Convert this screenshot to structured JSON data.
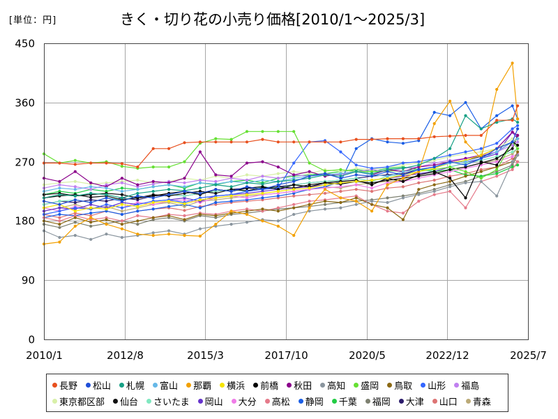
{
  "chart_data": {
    "type": "line",
    "title": "きく・切り花の小売り価格[2010/1～2025/3]",
    "unit_label": "[単位：円]",
    "ylim": [
      0,
      450
    ],
    "xlim": [
      "2010/1",
      "2025/7"
    ],
    "y_ticks": [
      0,
      90,
      180,
      270,
      360,
      450
    ],
    "x_ticks": [
      "2010/1",
      "2012/8",
      "2015/3",
      "2017/10",
      "2020/5",
      "2022/12",
      "2025/7"
    ],
    "grid": true,
    "markers": true,
    "legend_position": "bottom",
    "x": [
      "2010/1",
      "2010/7",
      "2011/1",
      "2011/7",
      "2012/1",
      "2012/7",
      "2013/1",
      "2013/7",
      "2014/1",
      "2014/7",
      "2015/1",
      "2015/7",
      "2016/1",
      "2016/7",
      "2017/1",
      "2017/7",
      "2018/1",
      "2018/7",
      "2019/1",
      "2019/7",
      "2020/1",
      "2020/7",
      "2021/1",
      "2021/7",
      "2022/1",
      "2022/7",
      "2023/1",
      "2023/7",
      "2024/1",
      "2024/7",
      "2025/1",
      "2025/3"
    ],
    "series": [
      {
        "name": "長野",
        "color": "#E8501E",
        "values": [
          268,
          268,
          266,
          268,
          268,
          267,
          262,
          290,
          290,
          299,
          300,
          300,
          300,
          300,
          304,
          300,
          300,
          300,
          300,
          300,
          304,
          304,
          305,
          305,
          305,
          308,
          309,
          310,
          310,
          333,
          333,
          355
        ]
      },
      {
        "name": "松山",
        "color": "#1F4FD8",
        "values": [
          210,
          205,
          212,
          208,
          215,
          210,
          218,
          215,
          220,
          225,
          222,
          228,
          225,
          232,
          228,
          235,
          240,
          248,
          252,
          245,
          250,
          248,
          255,
          250,
          258,
          262,
          270,
          265,
          275,
          290,
          300,
          320
        ]
      },
      {
        "name": "札幌",
        "color": "#16A085",
        "values": [
          215,
          220,
          218,
          222,
          220,
          215,
          222,
          225,
          228,
          226,
          230,
          235,
          232,
          238,
          236,
          240,
          242,
          245,
          250,
          248,
          255,
          252,
          258,
          260,
          265,
          275,
          290,
          340,
          320,
          330,
          335,
          330
        ]
      },
      {
        "name": "富山",
        "color": "#66B8E8",
        "values": [
          225,
          230,
          228,
          232,
          230,
          225,
          228,
          232,
          235,
          232,
          238,
          236,
          240,
          238,
          242,
          240,
          245,
          248,
          250,
          252,
          255,
          250,
          248,
          255,
          258,
          262,
          268,
          270,
          275,
          285,
          300,
          305
        ]
      },
      {
        "name": "那覇",
        "color": "#F2A000",
        "values": [
          145,
          148,
          172,
          185,
          175,
          168,
          160,
          158,
          160,
          158,
          157,
          175,
          195,
          190,
          180,
          172,
          158,
          200,
          228,
          215,
          210,
          195,
          235,
          245,
          255,
          328,
          362,
          300,
          275,
          380,
          420,
          335
        ]
      },
      {
        "name": "横浜",
        "color": "#F5E400",
        "values": [
          200,
          205,
          195,
          200,
          198,
          205,
          202,
          208,
          210,
          206,
          212,
          215,
          218,
          220,
          222,
          225,
          228,
          230,
          235,
          238,
          240,
          242,
          245,
          250,
          255,
          260,
          268,
          272,
          280,
          290,
          300,
          305
        ]
      },
      {
        "name": "前橋",
        "color": "#000000",
        "values": [
          220,
          222,
          218,
          220,
          222,
          220,
          215,
          218,
          222,
          225,
          220,
          228,
          225,
          230,
          232,
          228,
          235,
          232,
          238,
          240,
          242,
          235,
          245,
          240,
          250,
          255,
          245,
          215,
          270,
          265,
          300,
          295
        ]
      },
      {
        "name": "秋田",
        "color": "#8B008B",
        "values": [
          245,
          240,
          255,
          238,
          232,
          245,
          235,
          240,
          238,
          245,
          285,
          250,
          248,
          268,
          270,
          262,
          250,
          255,
          248,
          252,
          255,
          250,
          258,
          255,
          262,
          265,
          270,
          275,
          280,
          290,
          315,
          310
        ]
      },
      {
        "name": "高知",
        "color": "#8A959E",
        "values": [
          165,
          155,
          158,
          152,
          160,
          155,
          158,
          162,
          165,
          160,
          168,
          172,
          175,
          178,
          182,
          180,
          190,
          195,
          198,
          200,
          205,
          210,
          208,
          215,
          220,
          225,
          232,
          238,
          240,
          218,
          270,
          280
        ]
      },
      {
        "name": "盛岡",
        "color": "#66E033",
        "values": [
          282,
          268,
          272,
          268,
          270,
          263,
          260,
          262,
          262,
          270,
          298,
          305,
          304,
          316,
          316,
          316,
          316,
          268,
          256,
          258,
          255,
          255,
          256,
          256,
          258,
          258,
          262,
          255,
          245,
          258,
          300,
          290
        ]
      },
      {
        "name": "鳥取",
        "color": "#8B6914",
        "values": [
          180,
          175,
          185,
          178,
          182,
          175,
          180,
          185,
          188,
          182,
          190,
          188,
          192,
          195,
          198,
          195,
          200,
          205,
          210,
          208,
          215,
          205,
          200,
          182,
          228,
          235,
          240,
          248,
          255,
          262,
          270,
          285
        ]
      },
      {
        "name": "山形",
        "color": "#3366FF",
        "values": [
          190,
          195,
          200,
          198,
          205,
          200,
          205,
          210,
          212,
          208,
          215,
          218,
          220,
          225,
          228,
          230,
          268,
          300,
          302,
          285,
          265,
          260,
          262,
          268,
          270,
          275,
          280,
          285,
          290,
          298,
          320,
          325
        ]
      },
      {
        "name": "福島",
        "color": "#C080F0",
        "values": [
          230,
          235,
          232,
          228,
          235,
          238,
          232,
          236,
          240,
          238,
          242,
          240,
          245,
          242,
          248,
          245,
          250,
          248,
          252,
          250,
          255,
          258,
          255,
          260,
          262,
          268,
          272,
          275,
          280,
          285,
          295,
          300
        ]
      },
      {
        "name": "東京都区部",
        "color": "#D8F0A8",
        "values": [
          235,
          238,
          240,
          236,
          238,
          240,
          242,
          238,
          240,
          245,
          242,
          248,
          245,
          250,
          248,
          252,
          255,
          252,
          258,
          255,
          260,
          258,
          262,
          265,
          268,
          272,
          278,
          282,
          285,
          290,
          305,
          300
        ]
      },
      {
        "name": "仙台",
        "color": "#111111",
        "values": [
          215,
          218,
          220,
          216,
          218,
          212,
          215,
          220,
          218,
          222,
          225,
          222,
          228,
          226,
          230,
          232,
          230,
          235,
          238,
          236,
          240,
          238,
          242,
          245,
          248,
          252,
          258,
          262,
          268,
          275,
          290,
          310
        ]
      },
      {
        "name": "さいたま",
        "color": "#80E8C0",
        "values": [
          205,
          210,
          212,
          208,
          215,
          212,
          218,
          215,
          220,
          218,
          222,
          225,
          228,
          225,
          232,
          230,
          235,
          238,
          240,
          242,
          245,
          240,
          248,
          250,
          255,
          258,
          262,
          268,
          272,
          278,
          285,
          290
        ]
      },
      {
        "name": "岡山",
        "color": "#6633CC",
        "values": [
          195,
          200,
          198,
          205,
          200,
          208,
          205,
          210,
          212,
          215,
          210,
          218,
          220,
          222,
          225,
          228,
          230,
          232,
          235,
          238,
          240,
          242,
          245,
          248,
          252,
          255,
          262,
          268,
          275,
          282,
          315,
          305
        ]
      },
      {
        "name": "大分",
        "color": "#F07CE8",
        "values": [
          200,
          195,
          202,
          198,
          205,
          200,
          208,
          205,
          210,
          212,
          208,
          215,
          218,
          215,
          220,
          222,
          225,
          228,
          230,
          232,
          235,
          230,
          238,
          240,
          245,
          250,
          255,
          260,
          265,
          270,
          278,
          282
        ]
      },
      {
        "name": "高松",
        "color": "#E57A8A",
        "values": [
          185,
          180,
          188,
          182,
          185,
          180,
          188,
          185,
          190,
          188,
          192,
          190,
          195,
          198,
          195,
          200,
          205,
          210,
          212,
          215,
          218,
          205,
          195,
          192,
          210,
          220,
          225,
          200,
          240,
          248,
          258,
          270
        ]
      },
      {
        "name": "静岡",
        "color": "#1A5EE6",
        "values": [
          185,
          190,
          188,
          192,
          195,
          190,
          195,
          198,
          202,
          205,
          200,
          208,
          210,
          212,
          215,
          218,
          222,
          228,
          232,
          240,
          290,
          305,
          300,
          298,
          302,
          345,
          340,
          360,
          320,
          340,
          355,
          335
        ]
      },
      {
        "name": "千葉",
        "color": "#22CC44",
        "values": [
          220,
          225,
          222,
          228,
          225,
          230,
          228,
          232,
          235,
          230,
          238,
          235,
          240,
          242,
          238,
          245,
          248,
          250,
          252,
          255,
          258,
          255,
          260,
          262,
          258,
          255,
          258,
          250,
          248,
          252,
          262,
          265
        ]
      },
      {
        "name": "福岡",
        "color": "#7D8070",
        "values": [
          175,
          170,
          178,
          172,
          176,
          180,
          175,
          182,
          185,
          180,
          188,
          185,
          190,
          192,
          195,
          198,
          200,
          202,
          205,
          208,
          210,
          212,
          215,
          218,
          222,
          228,
          235,
          240,
          248,
          255,
          265,
          280
        ]
      },
      {
        "name": "大津",
        "color": "#2B1B6B",
        "values": [
          205,
          210,
          208,
          212,
          210,
          215,
          212,
          218,
          220,
          218,
          222,
          225,
          228,
          230,
          228,
          232,
          235,
          238,
          240,
          242,
          245,
          248,
          250,
          252,
          258,
          262,
          268,
          272,
          278,
          285,
          300,
          305
        ]
      },
      {
        "name": "山口",
        "color": "#DD7474",
        "values": [
          190,
          185,
          192,
          188,
          195,
          190,
          195,
          198,
          200,
          196,
          202,
          205,
          208,
          210,
          212,
          215,
          218,
          220,
          222,
          225,
          228,
          225,
          230,
          232,
          238,
          242,
          248,
          252,
          258,
          262,
          275,
          270
        ]
      },
      {
        "name": "青森",
        "color": "#BBAA77",
        "values": [
          195,
          200,
          205,
          198,
          202,
          195,
          200,
          205,
          208,
          202,
          210,
          212,
          215,
          218,
          220,
          222,
          225,
          228,
          232,
          230,
          235,
          238,
          240,
          242,
          248,
          252,
          258,
          262,
          268,
          272,
          282,
          290
        ]
      }
    ]
  }
}
